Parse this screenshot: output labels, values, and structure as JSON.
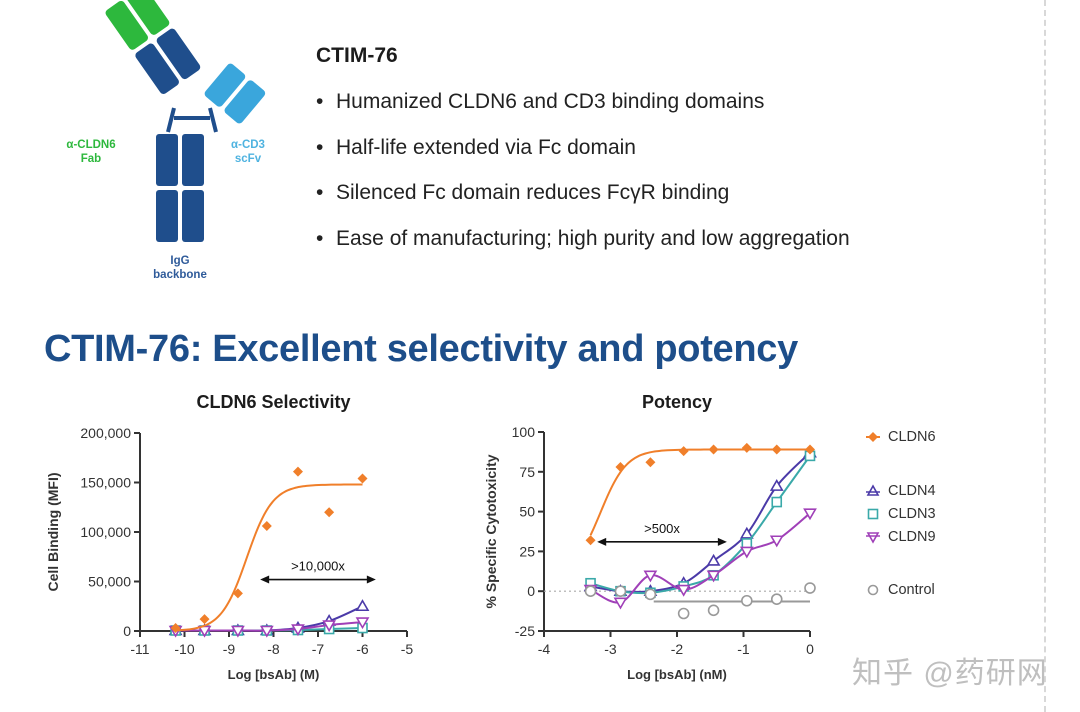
{
  "slide": {
    "product_heading": "CTIM-76",
    "bullets": [
      "Humanized CLDN6 and CD3 binding domains",
      "Half-life extended via Fc domain",
      "Silenced Fc domain reduces FcγR binding",
      "Ease of manufacturing; high purity and low aggregation"
    ],
    "main_title": "CTIM-76: Excellent selectivity and potency",
    "watermark": "知乎 @药研网"
  },
  "diagram": {
    "fab_label_line1": "α-CLDN6",
    "fab_label_line2": "Fab",
    "scfv_label_line1": "α-CD3",
    "scfv_label_line2": "scFv",
    "backbone_label_line1": "IgG",
    "backbone_label_line2": "backbone",
    "colors": {
      "fab_green": "#2db83d",
      "dark_blue": "#1f4e8c",
      "light_blue": "#3aa6dc"
    }
  },
  "legend": {
    "items": [
      {
        "label": "CLDN6",
        "marker": "diamond-filled",
        "color": "#f07f2a"
      },
      {
        "label": "CLDN4",
        "marker": "triangle-up-open",
        "color": "#4b3aa8"
      },
      {
        "label": "CLDN3",
        "marker": "square-open",
        "color": "#3aa9a9"
      },
      {
        "label": "CLDN9",
        "marker": "triangle-down-open",
        "color": "#a040b8"
      },
      {
        "label": "Control",
        "marker": "circle-open",
        "color": "#999999"
      }
    ]
  },
  "chart_data": [
    {
      "type": "scatter",
      "title": "CLDN6 Selectivity",
      "xlabel": "Log [bsAb] (M)",
      "ylabel": "Cell Binding (MFI)",
      "xlim": [
        -11,
        -5
      ],
      "ylim": [
        0,
        200000
      ],
      "xticks": [
        "-11",
        "-10",
        "-9",
        "-8",
        "-7",
        "-6",
        "-5"
      ],
      "yticks": [
        "0",
        "50,000",
        "100,000",
        "150,000",
        "200,000"
      ],
      "annotation": ">10,000x",
      "annotation_arrow_x": [
        -8.3,
        -5.7
      ],
      "annotation_arrow_y": 52000,
      "fit_curves": true,
      "x": [
        -10.2,
        -9.55,
        -8.8,
        -8.15,
        -7.45,
        -6.75,
        -6.0
      ],
      "series": [
        {
          "name": "CLDN6",
          "values": [
            3000,
            12000,
            38000,
            106000,
            161000,
            120000,
            154000
          ]
        },
        {
          "name": "CLDN4",
          "values": [
            500,
            500,
            500,
            500,
            3000,
            10000,
            25000
          ]
        },
        {
          "name": "CLDN3",
          "values": [
            500,
            500,
            500,
            500,
            1000,
            2000,
            3000
          ]
        },
        {
          "name": "CLDN9",
          "values": [
            500,
            500,
            500,
            500,
            2000,
            6000,
            9000
          ]
        }
      ]
    },
    {
      "type": "scatter",
      "title": "Potency",
      "xlabel": "Log [bsAb] (nM)",
      "ylabel": "% Specific Cytotoxicity",
      "xlim": [
        -4,
        0
      ],
      "ylim": [
        -25,
        100
      ],
      "xticks": [
        "-4",
        "-3",
        "-2",
        "-1",
        "0"
      ],
      "yticks": [
        "-25",
        "0",
        "25",
        "50",
        "75",
        "100"
      ],
      "annotation": ">500x",
      "annotation_arrow_x": [
        -3.2,
        -1.25
      ],
      "annotation_arrow_y": 31,
      "zero_reference_line": "dotted",
      "x": [
        -3.3,
        -2.85,
        -2.4,
        -1.9,
        -1.45,
        -0.95,
        -0.5,
        0.0
      ],
      "series": [
        {
          "name": "CLDN6",
          "values": [
            32,
            78,
            81,
            88,
            89,
            90,
            89,
            89
          ]
        },
        {
          "name": "CLDN4",
          "values": [
            3,
            0,
            0,
            5,
            19,
            36,
            66,
            87
          ]
        },
        {
          "name": "CLDN3",
          "values": [
            5,
            0,
            -1,
            3,
            10,
            30,
            56,
            85
          ]
        },
        {
          "name": "CLDN9",
          "values": [
            1,
            -7,
            10,
            1,
            10,
            25,
            32,
            49
          ]
        },
        {
          "name": "Control",
          "values": [
            0,
            0,
            -2,
            -14,
            -12,
            -6,
            -5,
            2
          ]
        }
      ]
    }
  ]
}
